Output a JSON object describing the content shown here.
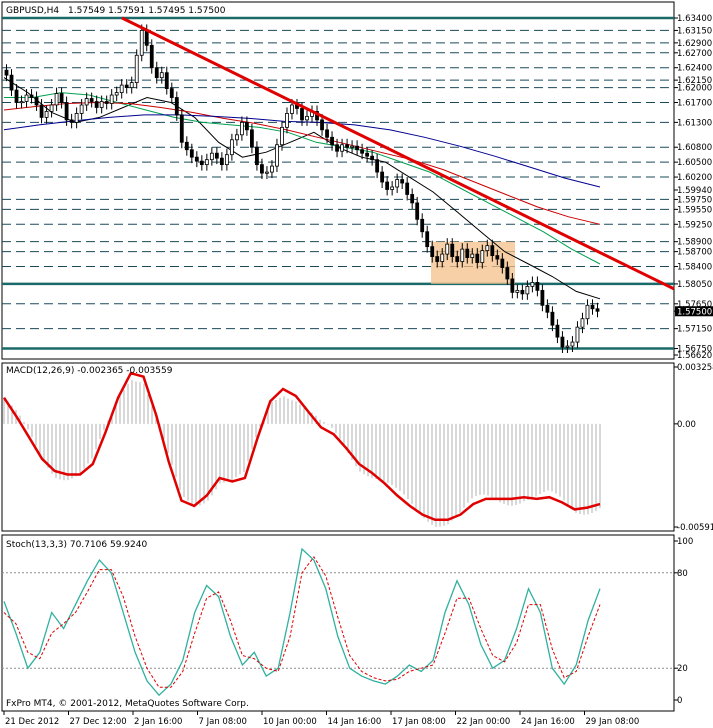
{
  "header": {
    "symbol": "GBPUSD,H4",
    "ohlc": "1.57549 1.57591 1.57495 1.57500"
  },
  "chart_data": [
    {
      "type": "candlestick",
      "name": "price",
      "ylim": [
        1.5662,
        1.634
      ],
      "price_levels": [
        "1.63400",
        "1.63150",
        "1.62900",
        "1.62700",
        "1.62400",
        "1.62150",
        "1.62000",
        "1.61700",
        "1.61300",
        "1.60800",
        "1.60500",
        "1.60200",
        "1.59750",
        "1.59550",
        "1.59250",
        "1.58900",
        "1.58700",
        "1.58400",
        "1.58050",
        "1.57650",
        "1.57150",
        "1.56750"
      ],
      "y_axis_ticks": [
        "1.63400",
        "1.63150",
        "1.62900",
        "1.62700",
        "1.62400",
        "1.62150",
        "1.62000",
        "1.61700",
        "1.61300",
        "1.60800",
        "1.60500",
        "1.60200",
        "1.59940",
        "1.59750",
        "1.59550",
        "1.59250",
        "1.58900",
        "1.58700",
        "1.58400",
        "1.58050",
        "1.57650",
        "1.57500",
        "1.57150",
        "1.56750",
        "1.56620"
      ],
      "current_price": "1.57500",
      "closes": [
        1.6225,
        1.6195,
        1.617,
        1.6172,
        1.6185,
        1.618,
        1.6165,
        1.614,
        1.6152,
        1.6165,
        1.6188,
        1.617,
        1.6135,
        1.613,
        1.6148,
        1.6165,
        1.6178,
        1.6172,
        1.616,
        1.6172,
        1.6168,
        1.6185,
        1.619,
        1.6205,
        1.62,
        1.621,
        1.6265,
        1.6315,
        1.6285,
        1.624,
        1.622,
        1.623,
        1.6198,
        1.618,
        1.6145,
        1.609,
        1.6075,
        1.606,
        1.6052,
        1.6045,
        1.6055,
        1.6068,
        1.6058,
        1.6045,
        1.6065,
        1.6095,
        1.6105,
        1.613,
        1.6115,
        1.608,
        1.6045,
        1.6028,
        1.603,
        1.6042,
        1.6085,
        1.612,
        1.6148,
        1.6165,
        1.6158,
        1.6135,
        1.6142,
        1.6152,
        1.6135,
        1.6115,
        1.61,
        1.6085,
        1.6072,
        1.6085,
        1.608,
        1.6082,
        1.6075,
        1.6068,
        1.6062,
        1.6055,
        1.603,
        1.601,
        1.5995,
        1.6,
        1.6015,
        1.6008,
        1.5985,
        1.5968,
        1.5935,
        1.591,
        1.588,
        1.586,
        1.585,
        1.5865,
        1.5885,
        1.586,
        1.585,
        1.5875,
        1.5858,
        1.5865,
        1.5848,
        1.5872,
        1.5882,
        1.5862,
        1.5855,
        1.5838,
        1.5815,
        1.5788,
        1.5792,
        1.5785,
        1.58,
        1.5808,
        1.5792,
        1.5762,
        1.5748,
        1.5722,
        1.5698,
        1.5678,
        1.568,
        1.5688,
        1.5718,
        1.5735,
        1.5762,
        1.5755,
        1.575
      ],
      "moving_averages": [
        {
          "color": "#000000",
          "values": [
            1.622,
            1.619,
            1.615,
            1.613,
            1.614,
            1.616,
            1.618,
            1.617,
            1.614,
            1.609,
            1.606,
            1.607,
            1.609,
            1.611,
            1.608,
            1.606,
            1.605,
            1.602,
            1.599,
            1.595,
            1.591,
            1.587,
            1.5845,
            1.582,
            1.579,
            1.5775
          ]
        },
        {
          "color": "#00a050",
          "values": [
            1.618,
            1.618,
            1.619,
            1.6185,
            1.617,
            1.6155,
            1.614,
            1.613,
            1.6125,
            1.612,
            1.611,
            1.609,
            1.608,
            1.607,
            1.605,
            1.603,
            1.6,
            1.597,
            1.594,
            1.591,
            1.5875,
            1.5845
          ]
        },
        {
          "color": "#cc0000",
          "values": [
            1.6155,
            1.6162,
            1.6168,
            1.617,
            1.6168,
            1.616,
            1.615,
            1.6138,
            1.6128,
            1.6115,
            1.61,
            1.6085,
            1.607,
            1.6055,
            1.6035,
            1.601,
            1.5985,
            1.596,
            1.594,
            1.5925
          ]
        },
        {
          "color": "#000090",
          "values": [
            1.6115,
            1.6125,
            1.6133,
            1.614,
            1.6145,
            1.6145,
            1.6142,
            1.6138,
            1.6132,
            1.613,
            1.6125,
            1.6115,
            1.61,
            1.6082,
            1.6062,
            1.604,
            1.6018,
            1.6
          ]
        }
      ],
      "trendline": {
        "from": 1.634,
        "to": 1.5795,
        "color": "#e00000"
      },
      "consolidation_box": {
        "top": 1.589,
        "bottom": 1.5805,
        "color": "#f5c08a"
      }
    },
    {
      "type": "histogram+line",
      "name": "MACD",
      "title": "MACD(12,26,9) -0.002365 -0.003559",
      "ylim": [
        -0.00591,
        0.003258
      ],
      "y_axis_ticks": [
        "0.003258",
        "0.00",
        "-0.00591"
      ],
      "signal": [
        0.0015,
        0.0004,
        -0.0008,
        -0.002,
        -0.0027,
        -0.0029,
        -0.0029,
        -0.0023,
        -0.0005,
        0.0015,
        0.0029,
        0.0027,
        0.0005,
        -0.0022,
        -0.0044,
        -0.0047,
        -0.0041,
        -0.0031,
        -0.0033,
        -0.0031,
        -0.0008,
        0.0013,
        0.002,
        0.0016,
        0.0007,
        -0.0002,
        -0.0006,
        -0.0014,
        -0.0023,
        -0.0028,
        -0.0034,
        -0.0041,
        -0.0047,
        -0.0052,
        -0.0055,
        -0.0055,
        -0.0052,
        -0.0046,
        -0.0043,
        -0.0043,
        -0.0043,
        -0.0042,
        -0.0043,
        -0.0042,
        -0.0045,
        -0.0049,
        -0.0048,
        -0.0046
      ]
    },
    {
      "type": "line",
      "name": "Stochastic",
      "title": "Stoch(13,3,3) 70.7106 59.9240",
      "ylim": [
        0,
        100
      ],
      "y_axis_ticks": [
        "100",
        "80",
        "20",
        "0"
      ],
      "main": [
        62,
        42,
        20,
        30,
        55,
        45,
        60,
        75,
        88,
        80,
        55,
        30,
        12,
        3,
        10,
        25,
        55,
        72,
        65,
        40,
        22,
        30,
        15,
        20,
        55,
        95,
        88,
        70,
        40,
        20,
        15,
        12,
        10,
        15,
        22,
        18,
        25,
        55,
        75,
        60,
        35,
        20,
        25,
        45,
        70,
        55,
        20,
        10,
        22,
        50,
        70
      ],
      "signal": [
        55,
        48,
        30,
        26,
        42,
        48,
        55,
        68,
        82,
        82,
        65,
        40,
        20,
        8,
        8,
        18,
        42,
        64,
        68,
        50,
        28,
        26,
        20,
        18,
        40,
        80,
        90,
        78,
        52,
        28,
        18,
        14,
        12,
        13,
        18,
        20,
        22,
        42,
        64,
        64,
        45,
        28,
        24,
        36,
        60,
        60,
        32,
        14,
        18,
        40,
        60
      ]
    }
  ],
  "x_axis": [
    "21 Dec 2012",
    "27 Dec 12:00",
    "2 Jan 16:00",
    "7 Jan 08:00",
    "10 Jan 00:00",
    "14 Jan 16:00",
    "17 Jan 08:00",
    "22 Jan 00:00",
    "24 Jan 16:00",
    "29 Jan 08:00"
  ],
  "watermark": "FxPro MT4, © 2001-2012, MetaQuotes Software Corp."
}
